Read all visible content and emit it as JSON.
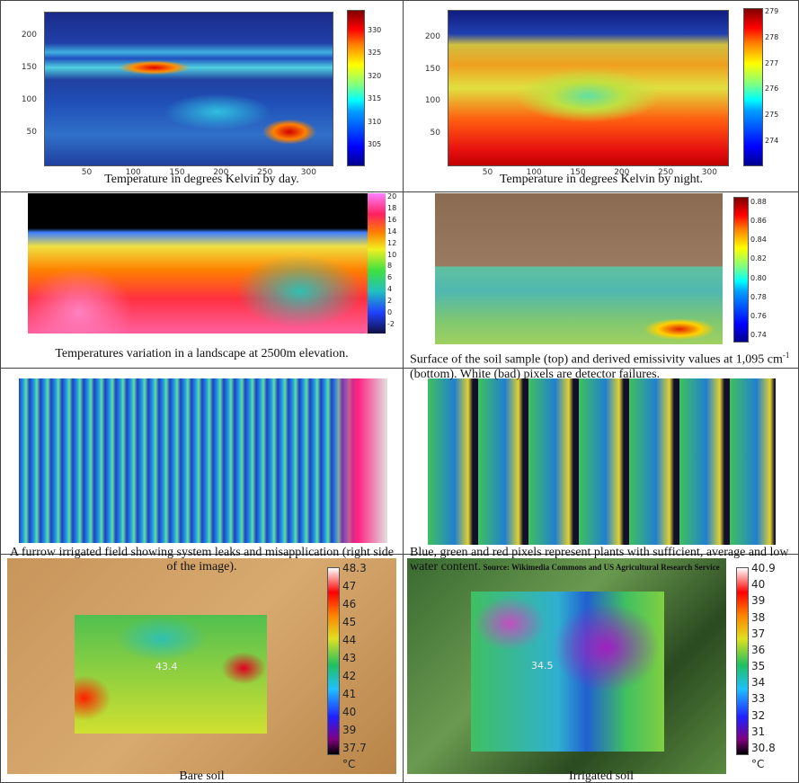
{
  "panels": [
    {
      "caption": "Temperature in degrees Kelvin by day.",
      "x_ticks": [
        50,
        100,
        150,
        200,
        250,
        300
      ],
      "y_ticks": [
        200,
        150,
        100,
        50
      ],
      "colorbar_ticks": [
        "330",
        "325",
        "320",
        "315",
        "310",
        "305"
      ]
    },
    {
      "caption": "Temperature in degrees Kelvin by night.",
      "x_ticks": [
        50,
        100,
        150,
        200,
        250,
        300
      ],
      "y_ticks": [
        200,
        150,
        100,
        50
      ],
      "colorbar_ticks": [
        "279",
        "278",
        "277",
        "276",
        "275",
        "274"
      ]
    },
    {
      "caption": "Temperatures variation in a landscape at 2500m elevation.",
      "colorbar_ticks": [
        "20",
        "18",
        "16",
        "14",
        "12",
        "10",
        "8",
        "6",
        "4",
        "2",
        "0",
        "-2"
      ]
    },
    {
      "caption": "Surface of the soil sample (top) and derived emissivity values at 1,095 cm",
      "caption_sup": "-1",
      "caption_rest": " (bottom). White (bad) pixels are detector failures.",
      "colorbar_ticks": [
        "0.88",
        "0.86",
        "0.84",
        "0.82",
        "0.80",
        "0.78",
        "0.76",
        "0.74"
      ]
    },
    {
      "caption": "A furrow irrigated field showing system leaks and misapplication (right side of the image)."
    },
    {
      "caption": "Blue, green and red pixels represent plants with sufficient, average and low water content.",
      "source": "Source: Wikimedia Commons and US Agricultural Research Service"
    },
    {
      "caption": "Bare soil",
      "image_label": "43.4",
      "colorbar_ticks": [
        "48.3",
        "47",
        "46",
        "45",
        "44",
        "43",
        "42",
        "41",
        "40",
        "39",
        "37.7"
      ],
      "colorbar_unit": "°C"
    },
    {
      "caption": "Irrigated soil",
      "image_label": "34.5",
      "colorbar_ticks": [
        "40.9",
        "40",
        "39",
        "38",
        "37",
        "36",
        "35",
        "34",
        "33",
        "32",
        "31",
        "30.8"
      ],
      "colorbar_unit": "°C"
    }
  ]
}
